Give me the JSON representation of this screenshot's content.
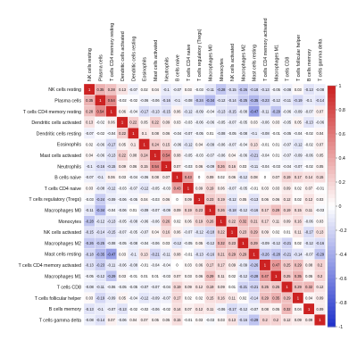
{
  "chart_data": {
    "type": "heatmap",
    "title": "",
    "xlabel": "",
    "ylabel": "",
    "labels": [
      "NK cells resting",
      "Plasma cells",
      "T cells CD4 memory resting",
      "Dendritic cells activated",
      "Dendritic cells resting",
      "Eosinophils",
      "Mast cells activated",
      "Neutrophils",
      "B cells naive",
      "T cells CD4 naive",
      "T cells regulatory (Tregs)",
      "Macrophages M0",
      "Monocytes",
      "NK cells activated",
      "Macrophages M2",
      "Mast cells resting",
      "T cells CD4 memory activated",
      "Macrophages M1",
      "T cells CD8",
      "T cells follicular helper",
      "B cells memory",
      "T cells gamma delta"
    ],
    "legend_ticks": [
      "1",
      "0.8",
      "0.6",
      "0.4",
      "0.2",
      "0",
      "-0.2",
      "-0.4",
      "-0.6",
      "-0.8",
      "-1"
    ],
    "colorscale": {
      "low": "#2233cc",
      "mid": "#ffffff",
      "high": "#cc2222",
      "range": [
        -1,
        1
      ]
    },
    "values": [
      [
        1,
        0.35,
        0.28,
        0.13,
        -0.07,
        0.02,
        0.04,
        -0.1,
        -0.07,
        0.03,
        -0.03,
        -0.11,
        -0.28,
        -0.15,
        -0.26,
        -0.18,
        -0.13,
        -0.05,
        -0.08,
        0.03,
        -0.13,
        -0.08
      ],
      [
        0.35,
        1,
        0.54,
        -0.02,
        -0.02,
        -0.06,
        -0.06,
        -0.16,
        -0.1,
        -0.08,
        -0.24,
        -0.34,
        -0.12,
        -0.14,
        -0.25,
        -0.35,
        -0.23,
        -0.12,
        -0.11,
        -0.19,
        -0.1,
        -0.14
      ],
      [
        0.28,
        0.54,
        1,
        0.06,
        -0.04,
        -0.17,
        -0.13,
        -0.15,
        0.06,
        -0.12,
        -0.09,
        -0.04,
        -0.13,
        -0.15,
        -0.08,
        -0.47,
        -0.11,
        -0.29,
        -0.06,
        -0.09,
        -0.07,
        0.07
      ],
      [
        0.13,
        -0.02,
        0.06,
        1,
        0.22,
        0.05,
        0.22,
        0.09,
        0.03,
        -0.03,
        -0.06,
        -0.06,
        -0.05,
        -0.07,
        -0.05,
        0.03,
        -0.06,
        0.03,
        -0.05,
        0.05,
        -0.13,
        -0.06
      ],
      [
        -0.07,
        -0.02,
        -0.04,
        0.22,
        1,
        0.1,
        0.08,
        0.06,
        -0.04,
        -0.07,
        -0.05,
        0.01,
        -0.08,
        -0.05,
        -0.08,
        -0.1,
        -0.08,
        -0.01,
        -0.05,
        -0.04,
        -0.02,
        0.04
      ],
      [
        0.02,
        -0.06,
        -0.17,
        0.05,
        0.1,
        1,
        0.24,
        0.15,
        -0.06,
        -0.12,
        0.04,
        -0.09,
        -0.06,
        -0.07,
        -0.04,
        0.13,
        -0.01,
        0.01,
        -0.07,
        -0.12,
        -0.02,
        0.07
      ],
      [
        0.04,
        -0.06,
        -0.13,
        0.22,
        0.08,
        0.24,
        1,
        0.54,
        0.08,
        -0.05,
        -0.03,
        -0.07,
        -0.06,
        0.04,
        -0.06,
        -0.21,
        -0.04,
        0.01,
        -0.07,
        -0.09,
        -0.06,
        0.05
      ],
      [
        -0.1,
        -0.16,
        -0.15,
        0.09,
        0.06,
        0.15,
        0.54,
        1,
        0.07,
        -0.03,
        0.06,
        -0.09,
        0.26,
        0.16,
        0.03,
        -0.11,
        -0.04,
        -0.03,
        -0.04,
        -0.07,
        -0.02,
        0.05
      ],
      [
        -0.07,
        -0.1,
        0.06,
        0.03,
        -0.04,
        -0.06,
        0.08,
        0.07,
        1,
        0.43,
        0,
        0.09,
        0.02,
        0.06,
        -0.12,
        0.08,
        0,
        0.07,
        0.19,
        0.17,
        0.14,
        0.15
      ],
      [
        0.03,
        -0.08,
        -0.12,
        -0.03,
        -0.07,
        -0.12,
        -0.05,
        -0.03,
        0.43,
        1,
        0.09,
        0.19,
        0.06,
        -0.07,
        -0.05,
        -0.01,
        0.03,
        0.03,
        0.09,
        0.02,
        0.07,
        -0.01
      ],
      [
        -0.03,
        -0.24,
        -0.09,
        -0.06,
        -0.05,
        0.04,
        -0.03,
        0.06,
        0,
        0.09,
        1,
        0.23,
        0.19,
        -0.12,
        0.05,
        -0.13,
        0.06,
        0.06,
        0.12,
        0.02,
        0.12,
        0.03
      ],
      [
        -0.11,
        -0.34,
        -0.04,
        -0.06,
        0.01,
        -0.09,
        -0.07,
        -0.09,
        0.09,
        0.19,
        0.23,
        1,
        0.26,
        -0.18,
        -0.12,
        -0.16,
        0.17,
        0.29,
        0.19,
        0.15,
        0.11,
        -0.03
      ],
      [
        -0.28,
        -0.12,
        -0.13,
        -0.05,
        -0.08,
        -0.06,
        -0.06,
        0.26,
        0.02,
        0.06,
        0.19,
        0.26,
        1,
        0.22,
        0.32,
        0.21,
        0.17,
        0.11,
        0.09,
        0.16,
        -0.06,
        0.03
      ],
      [
        -0.15,
        -0.14,
        -0.15,
        -0.07,
        -0.05,
        -0.07,
        0.04,
        0.16,
        0.06,
        -0.07,
        -0.12,
        -0.18,
        0.22,
        1,
        0.23,
        0.29,
        0.09,
        0.02,
        0.01,
        0.11,
        -0.17,
        0.13
      ],
      [
        -0.26,
        -0.25,
        -0.08,
        -0.05,
        -0.08,
        -0.04,
        -0.06,
        0.03,
        -0.12,
        -0.05,
        0.05,
        -0.12,
        0.32,
        0.23,
        1,
        0.29,
        -0.09,
        -0.12,
        -0.21,
        0.02,
        -0.12,
        -0.16
      ],
      [
        -0.18,
        -0.35,
        -0.47,
        0.03,
        -0.1,
        0.13,
        -0.21,
        -0.11,
        0.08,
        -0.01,
        -0.13,
        -0.16,
        0.21,
        0.29,
        0.29,
        1,
        -0.26,
        -0.28,
        -0.21,
        -0.14,
        -0.07,
        -0.29
      ],
      [
        -0.13,
        -0.23,
        -0.11,
        -0.06,
        -0.08,
        -0.01,
        -0.04,
        -0.04,
        0,
        0.03,
        0.06,
        0.17,
        0.17,
        0.09,
        -0.09,
        -0.26,
        1,
        0.47,
        0.25,
        0.29,
        0.08,
        0.2
      ],
      [
        -0.05,
        -0.12,
        -0.29,
        0.03,
        -0.01,
        0.01,
        0.01,
        -0.03,
        0.07,
        0.03,
        0.06,
        0.29,
        0.11,
        0.02,
        -0.12,
        -0.28,
        0.47,
        1,
        0.25,
        0.35,
        0.05,
        0.2
      ],
      [
        -0.08,
        -0.11,
        -0.06,
        -0.05,
        -0.05,
        -0.07,
        -0.07,
        -0.04,
        0.19,
        0.09,
        0.12,
        0.19,
        0.09,
        0.01,
        -0.21,
        -0.21,
        0.25,
        0.25,
        1,
        0.29,
        0.32,
        0.12
      ],
      [
        0.03,
        -0.19,
        -0.09,
        0.05,
        -0.04,
        -0.12,
        -0.09,
        -0.07,
        0.17,
        0.02,
        0.02,
        0.15,
        0.16,
        0.11,
        0.02,
        -0.14,
        0.29,
        0.35,
        0.29,
        1,
        0.04,
        0.09
      ],
      [
        -0.13,
        -0.1,
        -0.07,
        -0.13,
        -0.02,
        -0.02,
        -0.06,
        -0.02,
        0.14,
        0.07,
        0.12,
        0.11,
        -0.06,
        -0.17,
        -0.12,
        -0.07,
        0.08,
        0.05,
        0.32,
        0.04,
        1,
        0.09
      ],
      [
        -0.08,
        -0.14,
        0.07,
        -0.06,
        0.04,
        0.07,
        0.05,
        0.05,
        0.15,
        -0.01,
        0.03,
        -0.03,
        0.03,
        0.13,
        -0.16,
        -0.29,
        0.2,
        0.2,
        0.12,
        0.09,
        0.09,
        1
      ]
    ]
  }
}
